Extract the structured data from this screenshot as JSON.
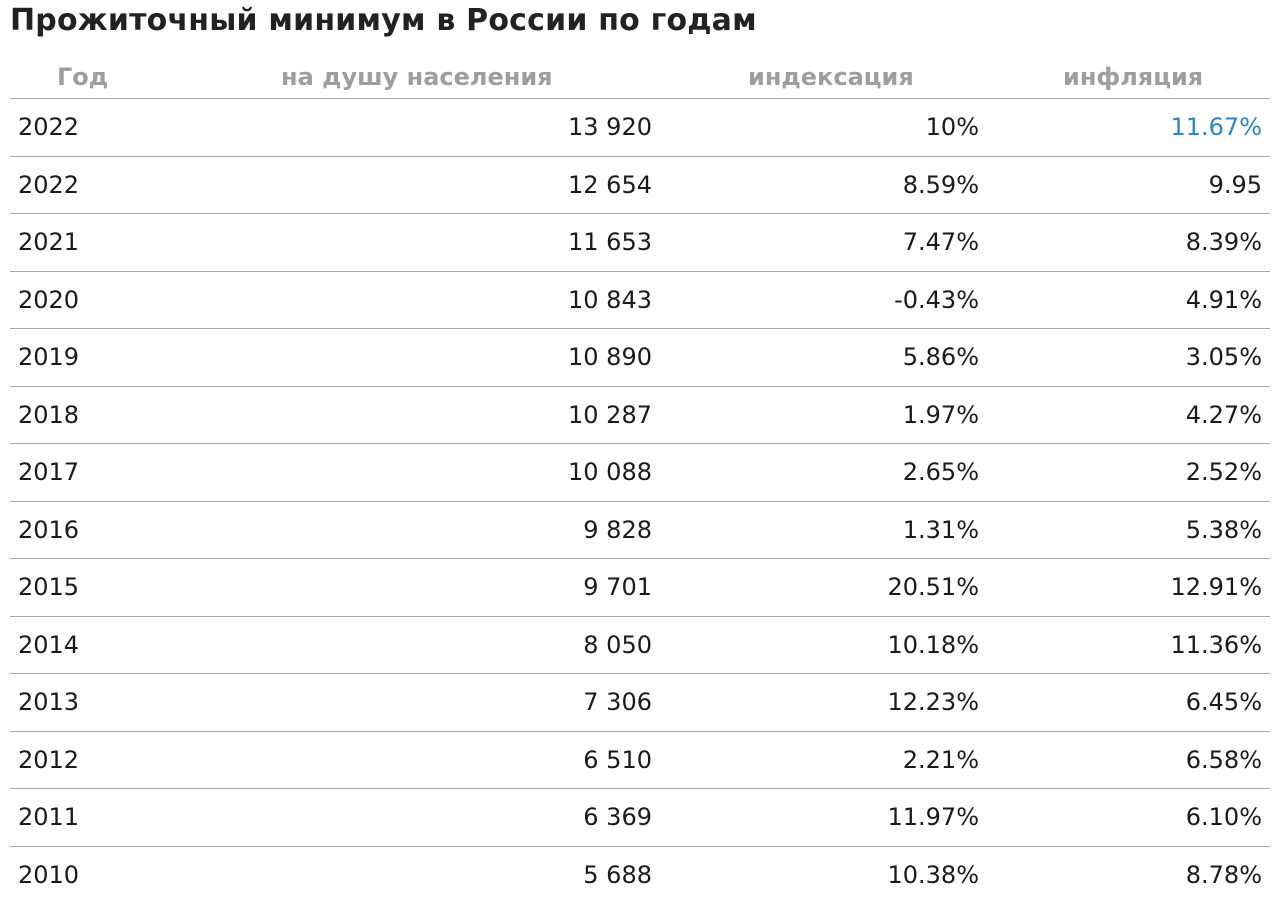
{
  "title": "Прожиточный минимум в России по годам",
  "table": {
    "headers": {
      "year": "Год",
      "per_capita": "на душу населения",
      "indexation": "индексация",
      "inflation": "инфляция"
    },
    "rows": [
      {
        "year": "2022",
        "per_capita": "13 920",
        "indexation": "10%",
        "inflation": "11.67%"
      },
      {
        "year": "2022",
        "per_capita": "12 654",
        "indexation": "8.59%",
        "inflation": "9.95"
      },
      {
        "year": "2021",
        "per_capita": "11 653",
        "indexation": "7.47%",
        "inflation": "8.39%"
      },
      {
        "year": "2020",
        "per_capita": "10 843",
        "indexation": "-0.43%",
        "inflation": "4.91%"
      },
      {
        "year": "2019",
        "per_capita": "10 890",
        "indexation": "5.86%",
        "inflation": "3.05%"
      },
      {
        "year": "2018",
        "per_capita": "10 287",
        "indexation": "1.97%",
        "inflation": "4.27%"
      },
      {
        "year": "2017",
        "per_capita": "10 088",
        "indexation": "2.65%",
        "inflation": "2.52%"
      },
      {
        "year": "2016",
        "per_capita": "9 828",
        "indexation": "1.31%",
        "inflation": "5.38%"
      },
      {
        "year": "2015",
        "per_capita": "9 701",
        "indexation": "20.51%",
        "inflation": "12.91%"
      },
      {
        "year": "2014",
        "per_capita": "8 050",
        "indexation": "10.18%",
        "inflation": "11.36%"
      },
      {
        "year": "2013",
        "per_capita": "7 306",
        "indexation": "12.23%",
        "inflation": "6.45%"
      },
      {
        "year": "2012",
        "per_capita": "6 510",
        "indexation": "2.21%",
        "inflation": "6.58%"
      },
      {
        "year": "2011",
        "per_capita": "6 369",
        "indexation": "11.97%",
        "inflation": "6.10%"
      },
      {
        "year": "2010",
        "per_capita": "5 688",
        "indexation": "10.38%",
        "inflation": "8.78%"
      }
    ]
  },
  "colors": {
    "link": "#2b86c5",
    "header_text": "#9e9e9e",
    "divider": "#a9a9a9"
  }
}
